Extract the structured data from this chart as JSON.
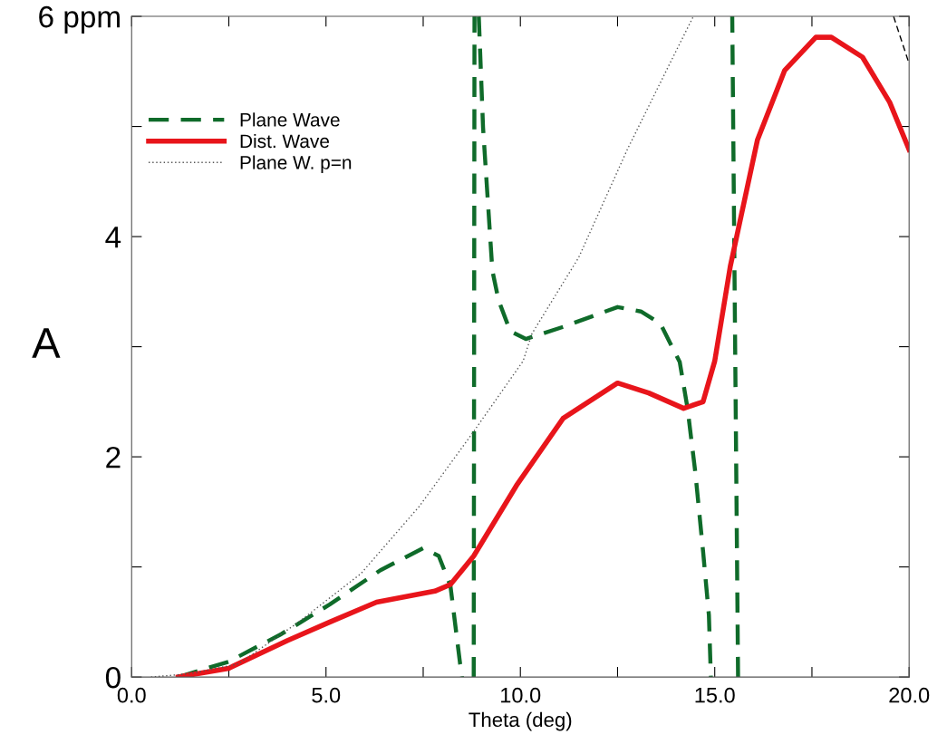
{
  "chart_data": {
    "type": "line",
    "xlabel": "Theta (deg)",
    "ylabel": "A",
    "xlim": [
      0,
      20
    ],
    "ylim": [
      0,
      6
    ],
    "xticks": [
      {
        "value": 0,
        "label": "0.0"
      },
      {
        "value": 2.5,
        "label": null
      },
      {
        "value": 5,
        "label": "5.0"
      },
      {
        "value": 7.5,
        "label": null
      },
      {
        "value": 10,
        "label": "10.0"
      },
      {
        "value": 12.5,
        "label": null
      },
      {
        "value": 15,
        "label": "15.0"
      },
      {
        "value": 17.5,
        "label": null
      },
      {
        "value": 20,
        "label": "20.0"
      }
    ],
    "yticks": [
      0,
      {
        "value": 1,
        "label": null
      },
      2,
      {
        "value": 3,
        "label": null
      },
      4,
      {
        "value": 5,
        "label": null
      },
      {
        "value": 6,
        "label": "6 ppm"
      }
    ],
    "legend": "top left",
    "grid": false,
    "marker": "none",
    "series": [
      {
        "name": "Plane Wave",
        "color": "#0f6b2a",
        "line_style": "dashed",
        "x": [
          1.2,
          2.5,
          3.85,
          5.1,
          6.4,
          7.5,
          7.9,
          8.2,
          8.45,
          8.5,
          8.52,
          8.8,
          8.82,
          8.87,
          8.93,
          9.04,
          9.28,
          9.44,
          9.74,
          10.14,
          11.1,
          12.5,
          13.1,
          13.6,
          14.1,
          14.3,
          14.5,
          14.7,
          14.85,
          14.9,
          15.2,
          15.6,
          15.45
        ],
        "values": [
          0,
          0.14,
          0.39,
          0.66,
          0.97,
          1.17,
          1.1,
          0.83,
          0.12,
          0,
          null,
          0,
          6,
          null,
          6,
          4.99,
          3.69,
          3.42,
          3.14,
          3.07,
          3.18,
          3.36,
          3.32,
          3.21,
          2.86,
          2.44,
          1.86,
          1.14,
          0.56,
          0,
          null,
          0,
          6
        ]
      },
      {
        "name": "Dist. Wave",
        "color": "#e8151b",
        "line_style": "solid",
        "x": [
          1.2,
          2.5,
          4.0,
          5.1,
          6.3,
          7.8,
          8.2,
          8.8,
          9.9,
          11.1,
          12.5,
          13.3,
          14.2,
          14.7,
          15.0,
          15.4,
          16.1,
          16.8,
          17.6,
          18.0,
          18.8,
          19.5,
          20.0
        ],
        "values": [
          0,
          0.08,
          0.33,
          0.5,
          0.68,
          0.78,
          0.84,
          1.1,
          1.74,
          2.35,
          2.67,
          2.58,
          2.44,
          2.5,
          2.87,
          3.73,
          4.88,
          5.51,
          5.81,
          5.81,
          5.63,
          5.22,
          4.79
        ]
      },
      {
        "name": "Plane W. p=n",
        "color": "#555555",
        "line_style": "dotted",
        "x": [
          0.5,
          1.5,
          2.75,
          4.3,
          5.9,
          7.4,
          8.8,
          10.07,
          10.3,
          11.5,
          12.75,
          13.8,
          14.45
        ],
        "values": [
          0,
          0.03,
          0.12,
          0.5,
          0.94,
          1.55,
          2.23,
          2.87,
          3.12,
          3.81,
          4.79,
          5.54,
          6.0
        ]
      },
      {
        "color": "#000000",
        "line_style": "dashed",
        "x": [
          19.6,
          20.0
        ],
        "values": [
          6.0,
          5.57
        ]
      }
    ]
  }
}
